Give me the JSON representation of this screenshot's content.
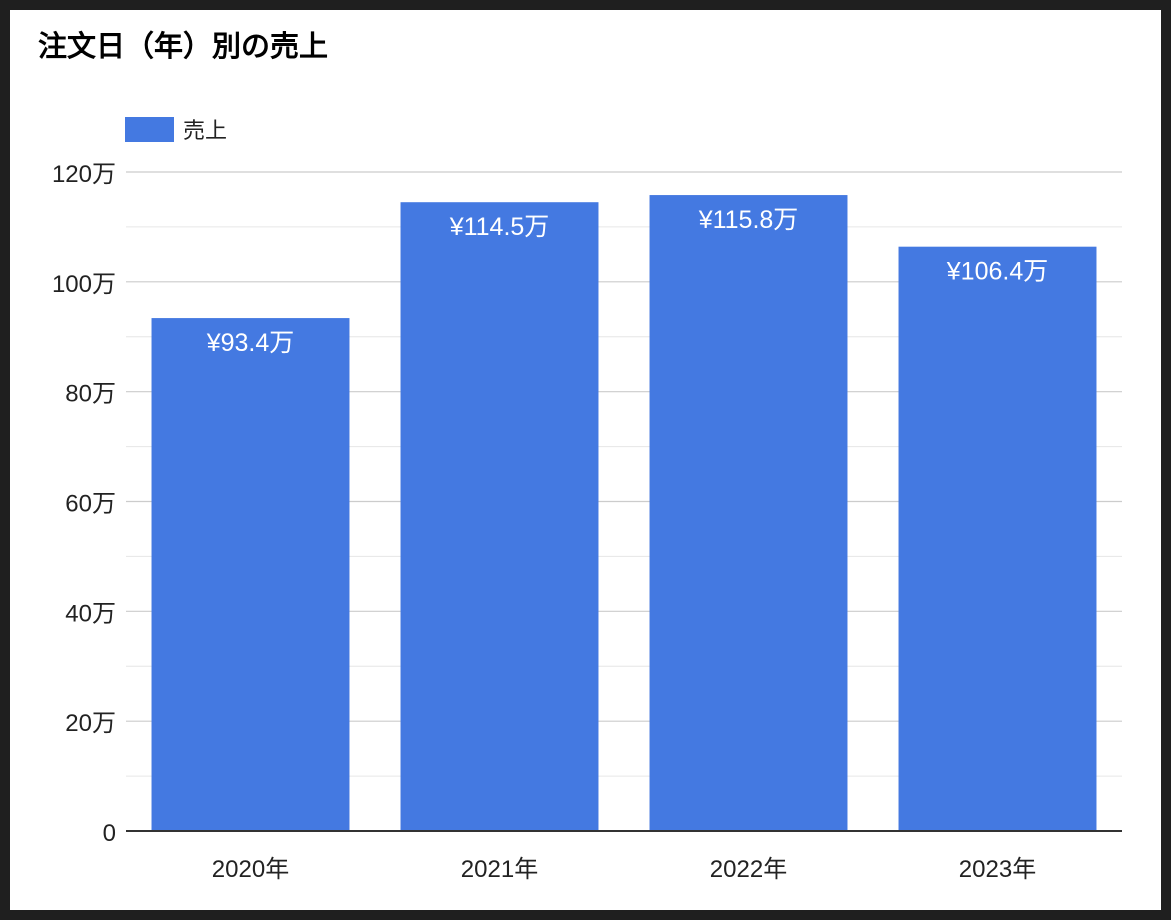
{
  "chart_data": {
    "type": "bar",
    "title": "注文日（年）別の売上",
    "categories": [
      "2020年",
      "2021年",
      "2022年",
      "2023年"
    ],
    "series": [
      {
        "name": "売上",
        "values": [
          934000,
          1145000,
          1158000,
          1064000
        ],
        "labels": [
          "¥93.4万",
          "¥114.5万",
          "¥115.8万",
          "¥106.4万"
        ]
      }
    ],
    "y_ticks": [
      {
        "value": 0,
        "label": "0"
      },
      {
        "value": 200000,
        "label": "20万"
      },
      {
        "value": 400000,
        "label": "40万"
      },
      {
        "value": 600000,
        "label": "60万"
      },
      {
        "value": 800000,
        "label": "80万"
      },
      {
        "value": 1000000,
        "label": "100万"
      },
      {
        "value": 1200000,
        "label": "120万"
      }
    ],
    "ylim": [
      0,
      1200000
    ],
    "grid": true,
    "legend_position": "top-left",
    "colors": {
      "bar": "#4479e1",
      "grid": "#cccccc",
      "minor_grid": "#e6e6e6",
      "axis": "#333333",
      "text": "#222222",
      "bar_label": "#ffffff"
    }
  }
}
